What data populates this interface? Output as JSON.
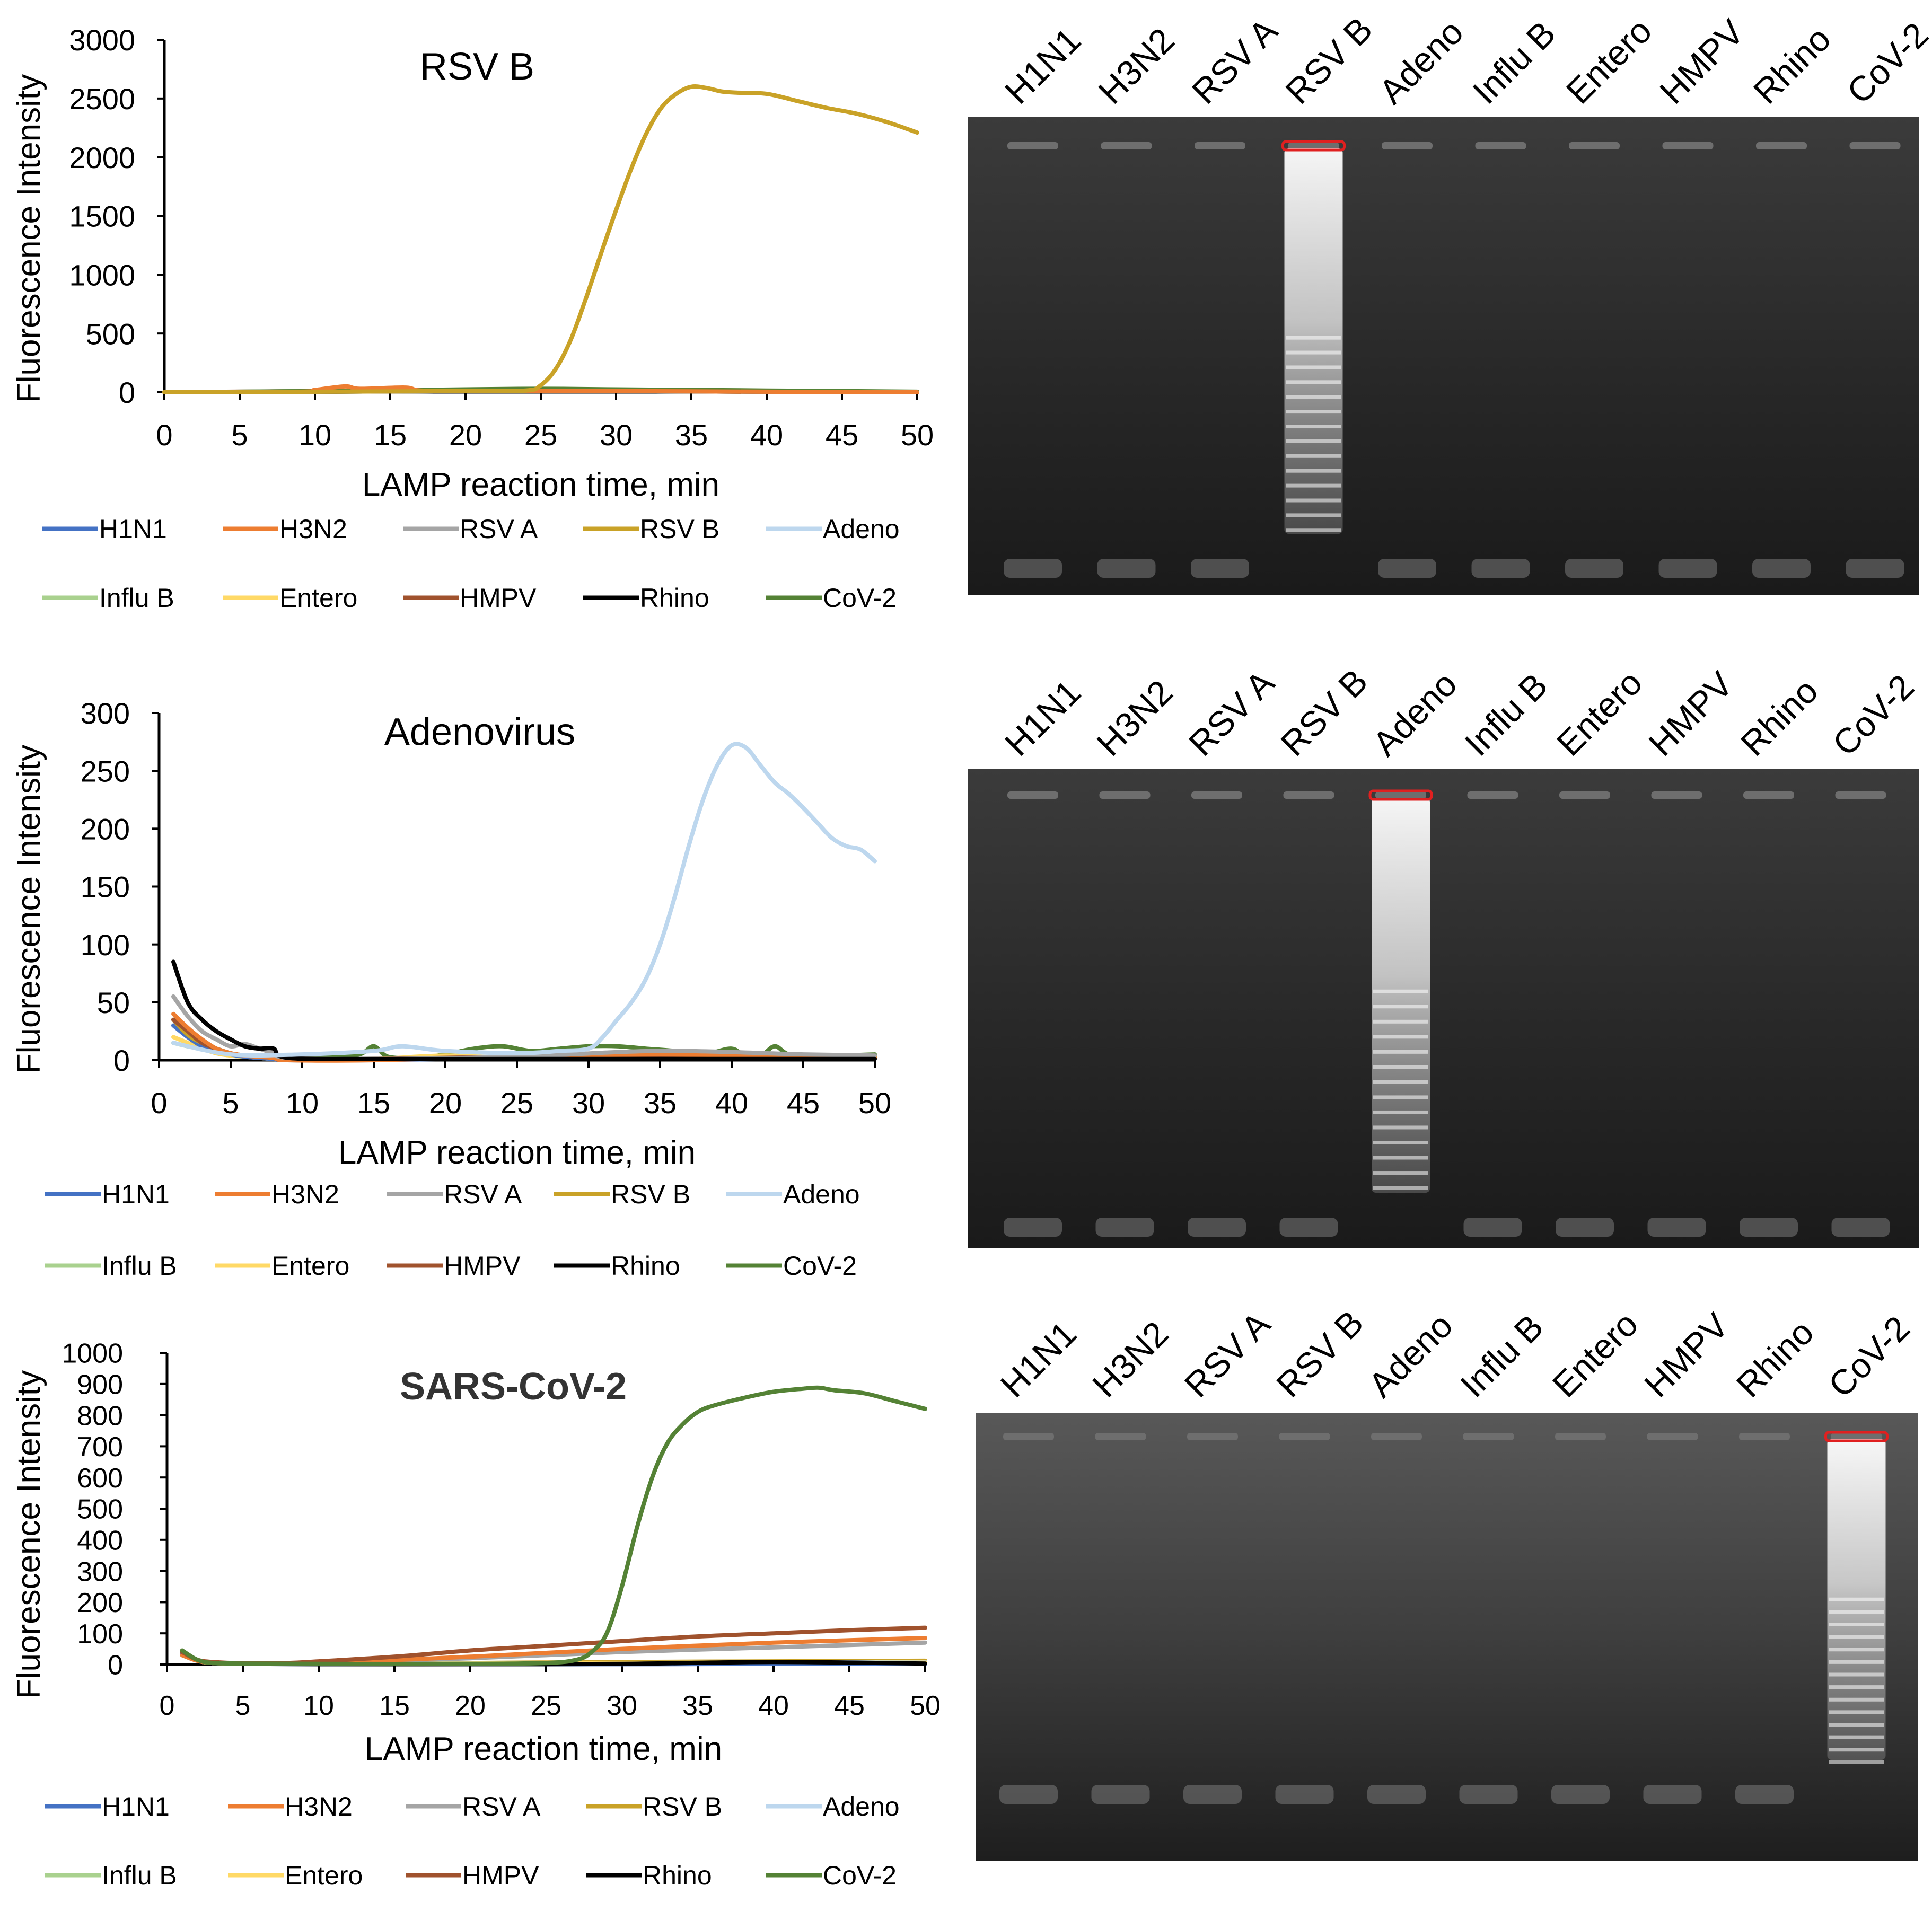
{
  "colors": {
    "H1N1": "#4472c4",
    "H3N2": "#ed7d31",
    "RSV A": "#a5a5a5",
    "RSV B": "#c9a227",
    "Adeno": "#bdd7ee",
    "Influ B": "#a9d18e",
    "Entero": "#ffd966",
    "HMPV": "#a0522d",
    "Rhino": "#000000",
    "CoV-2": "#548235"
  },
  "chart_data": [
    {
      "type": "line",
      "title": "RSV B",
      "xlabel": "LAMP reaction time, min",
      "ylabel": "Fluorescence Intensity",
      "xlim": [
        0,
        50
      ],
      "ylim": [
        0,
        3000
      ],
      "xticks": [
        0,
        5,
        10,
        15,
        20,
        25,
        30,
        35,
        40,
        45,
        50
      ],
      "yticks": [
        0,
        500,
        1000,
        1500,
        2000,
        2500,
        3000
      ],
      "legend": [
        "H1N1",
        "H3N2",
        "RSV A",
        "RSV B",
        "Adeno",
        "Influ B",
        "Entero",
        "HMPV",
        "Rhino",
        "CoV-2"
      ],
      "series": [
        {
          "name": "H1N1",
          "x": [
            0,
            10,
            20,
            30,
            40,
            50
          ],
          "values": [
            0,
            5,
            10,
            10,
            5,
            0
          ]
        },
        {
          "name": "H3N2",
          "x": [
            0,
            9,
            10,
            12,
            13,
            16,
            17,
            20,
            30,
            40,
            50
          ],
          "values": [
            0,
            5,
            20,
            50,
            30,
            40,
            15,
            10,
            10,
            5,
            0
          ]
        },
        {
          "name": "RSV A",
          "x": [
            0,
            10,
            20,
            30,
            40,
            50
          ],
          "values": [
            0,
            5,
            15,
            15,
            5,
            0
          ]
        },
        {
          "name": "RSV B",
          "x": [
            0,
            10,
            20,
            24,
            25,
            26,
            27,
            28,
            29,
            30,
            31,
            32,
            33,
            34,
            35,
            36,
            37,
            38,
            40,
            42,
            44,
            46,
            48,
            50
          ],
          "values": [
            0,
            5,
            10,
            15,
            60,
            200,
            450,
            800,
            1180,
            1550,
            1900,
            2200,
            2420,
            2540,
            2600,
            2590,
            2560,
            2550,
            2540,
            2480,
            2420,
            2370,
            2300,
            2210
          ]
        },
        {
          "name": "Adeno",
          "x": [
            0,
            10,
            20,
            30,
            40,
            50
          ],
          "values": [
            0,
            5,
            10,
            10,
            5,
            0
          ]
        },
        {
          "name": "Influ B",
          "x": [
            0,
            10,
            20,
            30,
            40,
            50
          ],
          "values": [
            0,
            10,
            20,
            20,
            10,
            0
          ]
        },
        {
          "name": "Entero",
          "x": [
            0,
            10,
            20,
            30,
            40,
            50
          ],
          "values": [
            0,
            5,
            10,
            10,
            5,
            0
          ]
        },
        {
          "name": "HMPV",
          "x": [
            0,
            10,
            20,
            30,
            40,
            50
          ],
          "values": [
            0,
            10,
            15,
            15,
            10,
            0
          ]
        },
        {
          "name": "Rhino",
          "x": [
            0,
            10,
            20,
            30,
            40,
            50
          ],
          "values": [
            0,
            5,
            10,
            10,
            5,
            0
          ]
        },
        {
          "name": "CoV-2",
          "x": [
            0,
            10,
            20,
            25,
            30,
            40,
            50
          ],
          "values": [
            0,
            10,
            25,
            30,
            25,
            15,
            5
          ]
        }
      ]
    },
    {
      "type": "line",
      "title": "Adenovirus",
      "xlabel": "LAMP reaction time, min",
      "ylabel": "Fluorescence Intensity",
      "xlim": [
        0,
        50
      ],
      "ylim": [
        0,
        300
      ],
      "xticks": [
        0,
        5,
        10,
        15,
        20,
        25,
        30,
        35,
        40,
        45,
        50
      ],
      "yticks": [
        0,
        50,
        100,
        150,
        200,
        250,
        300
      ],
      "legend": [
        "H1N1",
        "H3N2",
        "RSV A",
        "RSV B",
        "Adeno",
        "Influ B",
        "Entero",
        "HMPV",
        "Rhino",
        "CoV-2"
      ],
      "series": [
        {
          "name": "H1N1",
          "x": [
            1,
            2,
            3,
            4,
            5,
            6,
            7,
            8,
            9,
            15,
            25,
            35,
            45,
            50
          ],
          "values": [
            30,
            20,
            12,
            8,
            5,
            3,
            2,
            1,
            0,
            0,
            2,
            2,
            2,
            2
          ]
        },
        {
          "name": "H3N2",
          "x": [
            1,
            2,
            3,
            4,
            5,
            6,
            7,
            8,
            9,
            15,
            25,
            35,
            45,
            50
          ],
          "values": [
            40,
            28,
            18,
            10,
            6,
            4,
            3,
            2,
            0,
            0,
            3,
            5,
            3,
            2
          ]
        },
        {
          "name": "RSV A",
          "x": [
            1,
            2,
            3,
            4,
            5,
            6,
            7,
            8,
            9,
            15,
            25,
            35,
            45,
            50
          ],
          "values": [
            55,
            38,
            25,
            18,
            12,
            14,
            10,
            6,
            2,
            1,
            3,
            8,
            5,
            4
          ]
        },
        {
          "name": "RSV B",
          "x": [
            1,
            2,
            3,
            4,
            5,
            6,
            7,
            8,
            9,
            15,
            25,
            35,
            45,
            50
          ],
          "values": [
            35,
            22,
            15,
            10,
            6,
            4,
            3,
            2,
            0,
            1,
            2,
            6,
            4,
            3
          ]
        },
        {
          "name": "Adeno",
          "x": [
            1,
            5,
            10,
            15,
            17,
            20,
            25,
            28,
            30,
            31,
            32,
            33,
            34,
            35,
            36,
            37,
            38,
            39,
            40,
            41,
            42,
            43,
            44,
            45,
            46,
            47,
            48,
            49,
            50
          ],
          "values": [
            15,
            5,
            5,
            8,
            12,
            8,
            6,
            8,
            10,
            20,
            35,
            50,
            70,
            100,
            140,
            185,
            225,
            255,
            272,
            270,
            255,
            240,
            230,
            218,
            205,
            192,
            185,
            182,
            172
          ]
        },
        {
          "name": "Influ B",
          "x": [
            1,
            2,
            3,
            4,
            5,
            6,
            7,
            8,
            9,
            15,
            25,
            35,
            45,
            50
          ],
          "values": [
            15,
            12,
            10,
            6,
            4,
            3,
            2,
            1,
            0,
            1,
            2,
            2,
            2,
            2
          ]
        },
        {
          "name": "Entero",
          "x": [
            1,
            2,
            3,
            4,
            5,
            6,
            7,
            8,
            9,
            15,
            20,
            25,
            35,
            45,
            50
          ],
          "values": [
            20,
            15,
            10,
            6,
            4,
            3,
            2,
            1,
            0,
            1,
            4,
            2,
            3,
            2,
            2
          ]
        },
        {
          "name": "HMPV",
          "x": [
            1,
            2,
            3,
            4,
            5,
            6,
            7,
            8,
            9,
            15,
            25,
            35,
            45,
            50
          ],
          "values": [
            35,
            25,
            15,
            10,
            6,
            4,
            3,
            2,
            0,
            1,
            3,
            4,
            3,
            2
          ]
        },
        {
          "name": "Rhino",
          "x": [
            1,
            2,
            3,
            4,
            5,
            6,
            7,
            8,
            9,
            15,
            25,
            35,
            45,
            50
          ],
          "values": [
            85,
            50,
            35,
            25,
            18,
            12,
            10,
            10,
            2,
            1,
            1,
            1,
            1,
            1
          ]
        },
        {
          "name": "CoV-2",
          "x": [
            10,
            12,
            14,
            15,
            16,
            18,
            20,
            22,
            24,
            26,
            28,
            30,
            32,
            34,
            36,
            38,
            40,
            41,
            42,
            43,
            44,
            46,
            48,
            50
          ],
          "values": [
            2,
            3,
            5,
            12,
            3,
            2,
            5,
            10,
            12,
            8,
            10,
            12,
            12,
            10,
            8,
            5,
            10,
            2,
            3,
            12,
            5,
            2,
            4,
            5
          ]
        }
      ]
    },
    {
      "type": "line",
      "title": "SARS-CoV-2",
      "xlabel": "LAMP reaction time, min",
      "ylabel": "Fluorescence Intensity",
      "xlim": [
        0,
        50
      ],
      "ylim": [
        0,
        1000
      ],
      "xticks": [
        0,
        5,
        10,
        15,
        20,
        25,
        30,
        35,
        40,
        45,
        50
      ],
      "yticks": [
        0,
        100,
        200,
        300,
        400,
        500,
        600,
        700,
        800,
        900,
        1000
      ],
      "legend": [
        "H1N1",
        "H3N2",
        "RSV A",
        "RSV B",
        "Adeno",
        "Influ B",
        "Entero",
        "HMPV",
        "Rhino",
        "CoV-2"
      ],
      "series": [
        {
          "name": "H1N1",
          "x": [
            1,
            2,
            3,
            5,
            10,
            20,
            30,
            40,
            50
          ],
          "values": [
            35,
            15,
            5,
            2,
            1,
            1,
            1,
            2,
            2
          ]
        },
        {
          "name": "H3N2",
          "x": [
            1,
            2,
            3,
            5,
            10,
            20,
            30,
            40,
            50
          ],
          "values": [
            30,
            12,
            5,
            3,
            5,
            25,
            50,
            70,
            85
          ]
        },
        {
          "name": "RSV A",
          "x": [
            1,
            2,
            3,
            5,
            10,
            20,
            30,
            40,
            50
          ],
          "values": [
            30,
            12,
            5,
            3,
            5,
            20,
            40,
            55,
            70
          ]
        },
        {
          "name": "RSV B",
          "x": [
            1,
            2,
            3,
            5,
            10,
            20,
            30,
            40,
            50
          ],
          "values": [
            30,
            12,
            5,
            3,
            3,
            5,
            8,
            10,
            12
          ]
        },
        {
          "name": "Adeno",
          "x": [
            1,
            2,
            3,
            5,
            10,
            20,
            30,
            40,
            50
          ],
          "values": [
            30,
            12,
            5,
            3,
            3,
            4,
            5,
            6,
            8
          ]
        },
        {
          "name": "Influ B",
          "x": [
            1,
            2,
            3,
            5,
            10,
            20,
            30,
            40,
            50
          ],
          "values": [
            30,
            12,
            5,
            3,
            2,
            3,
            4,
            5,
            6
          ]
        },
        {
          "name": "Entero",
          "x": [
            1,
            2,
            3,
            5,
            10,
            20,
            30,
            40,
            50
          ],
          "values": [
            30,
            12,
            5,
            3,
            2,
            3,
            4,
            5,
            6
          ]
        },
        {
          "name": "HMPV",
          "x": [
            1,
            2,
            3,
            5,
            8,
            10,
            15,
            20,
            25,
            30,
            35,
            40,
            45,
            50
          ],
          "values": [
            40,
            15,
            8,
            4,
            5,
            10,
            25,
            45,
            60,
            75,
            90,
            100,
            110,
            118
          ]
        },
        {
          "name": "Rhino",
          "x": [
            1,
            2,
            3,
            5,
            10,
            20,
            30,
            40,
            50
          ],
          "values": [
            40,
            15,
            5,
            2,
            1,
            1,
            2,
            8,
            3
          ]
        },
        {
          "name": "CoV-2",
          "x": [
            1,
            2,
            3,
            5,
            10,
            20,
            25,
            27,
            28,
            29,
            30,
            31,
            32,
            33,
            34,
            35,
            36,
            38,
            40,
            42,
            43,
            44,
            46,
            48,
            50
          ],
          "values": [
            45,
            15,
            5,
            3,
            2,
            2,
            5,
            15,
            40,
            100,
            250,
            440,
            600,
            710,
            770,
            810,
            830,
            855,
            875,
            885,
            888,
            880,
            870,
            845,
            820
          ]
        }
      ]
    }
  ],
  "gels": [
    {
      "lanes": [
        "H1N1",
        "H3N2",
        "RSV A",
        "RSV B",
        "Adeno",
        "Influ B",
        "Entero",
        "HMPV",
        "Rhino",
        "CoV-2"
      ],
      "positive_lane": "RSV B"
    },
    {
      "lanes": [
        "H1N1",
        "H3N2",
        "RSV A",
        "RSV B",
        "Adeno",
        "Influ B",
        "Entero",
        "HMPV",
        "Rhino",
        "CoV-2"
      ],
      "positive_lane": "Adeno"
    },
    {
      "lanes": [
        "H1N1",
        "H3N2",
        "RSV A",
        "RSV B",
        "Adeno",
        "Influ B",
        "Entero",
        "HMPV",
        "Rhino",
        "CoV-2"
      ],
      "positive_lane": "CoV-2"
    }
  ]
}
